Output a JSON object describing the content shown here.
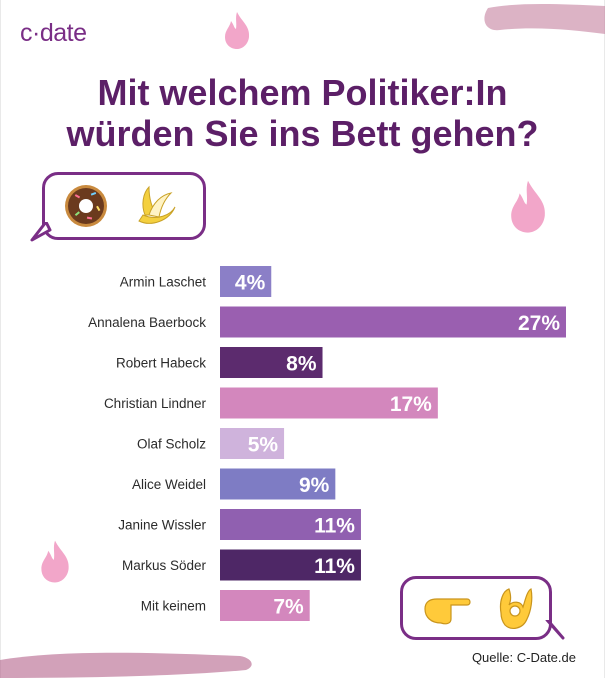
{
  "brand": {
    "logo": "c·date"
  },
  "title_line1": "Mit welchem Politiker:In",
  "title_line2": "würden Sie ins Bett gehen?",
  "source": "Quelle: C-Date.de",
  "icons": {
    "top_bubble": [
      "doughnut-icon",
      "banana-icon"
    ],
    "bottom_bubble": [
      "pointing-hand-icon",
      "ok-hand-icon"
    ],
    "decoration": [
      "flame-icon",
      "flame-icon",
      "flame-icon",
      "brush-stroke"
    ]
  },
  "colors": {
    "title": "#5c1f67",
    "logo": "#7a2e86",
    "flame": "#f2a6c9",
    "brush": "#c98aa6"
  },
  "chart_data": {
    "type": "bar",
    "orientation": "horizontal",
    "categories": [
      "Armin Laschet",
      "Annalena Baerbock",
      "Robert Habeck",
      "Christian Lindner",
      "Olaf Scholz",
      "Alice Weidel",
      "Janine Wissler",
      "Markus Söder",
      "Mit keinem"
    ],
    "values": [
      4,
      27,
      8,
      17,
      5,
      9,
      11,
      11,
      7
    ],
    "value_labels": [
      "4%",
      "27%",
      "8%",
      "17%",
      "5%",
      "9%",
      "11%",
      "11%",
      "7%"
    ],
    "unit": "%",
    "xlim": [
      0,
      27
    ],
    "bar_colors": [
      "#8b7fc7",
      "#9a5fb0",
      "#5c2b6e",
      "#d387bd",
      "#cfb3dc",
      "#7e7cc4",
      "#9060b0",
      "#4e2766",
      "#d387bd"
    ],
    "grid": false,
    "legend": "none"
  }
}
